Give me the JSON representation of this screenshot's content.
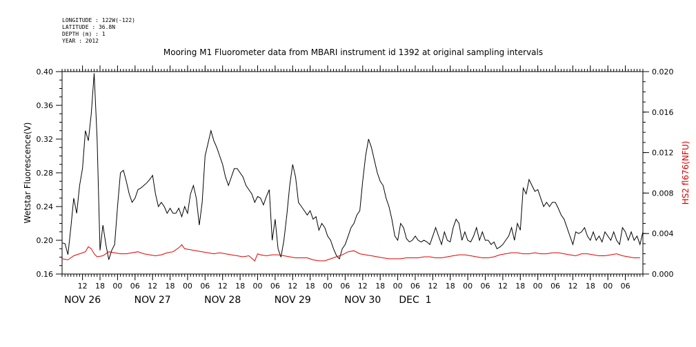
{
  "header_info": [
    "LONGITUDE : 122W(-122)",
    "LATITUDE : 36.8N",
    "DEPTH (m) : 1",
    "YEAR : 2012"
  ],
  "chart_data": {
    "type": "line",
    "title": "Mooring M1 Fluorometer data from MBARI instrument id 1392 at original sampling intervals",
    "xlabel": "",
    "x_unit": "hours since NOV 26 00:00 (2012)",
    "xlim": [
      5,
      204
    ],
    "x_ticks": [
      {
        "x": 12,
        "label": "12"
      },
      {
        "x": 18,
        "label": "18"
      },
      {
        "x": 24,
        "label": "00"
      },
      {
        "x": 30,
        "label": "06"
      },
      {
        "x": 36,
        "label": "12"
      },
      {
        "x": 42,
        "label": "18"
      },
      {
        "x": 48,
        "label": "00"
      },
      {
        "x": 54,
        "label": "06"
      },
      {
        "x": 60,
        "label": "12"
      },
      {
        "x": 66,
        "label": "18"
      },
      {
        "x": 72,
        "label": "00"
      },
      {
        "x": 78,
        "label": "06"
      },
      {
        "x": 84,
        "label": "12"
      },
      {
        "x": 90,
        "label": "18"
      },
      {
        "x": 96,
        "label": "00"
      },
      {
        "x": 102,
        "label": "06"
      },
      {
        "x": 108,
        "label": "12"
      },
      {
        "x": 114,
        "label": "18"
      },
      {
        "x": 120,
        "label": "00"
      },
      {
        "x": 126,
        "label": "06"
      },
      {
        "x": 132,
        "label": "12"
      },
      {
        "x": 138,
        "label": "18"
      },
      {
        "x": 144,
        "label": "00"
      },
      {
        "x": 150,
        "label": "06"
      },
      {
        "x": 156,
        "label": "12"
      },
      {
        "x": 162,
        "label": "18"
      },
      {
        "x": 168,
        "label": "00"
      },
      {
        "x": 174,
        "label": "06"
      },
      {
        "x": 180,
        "label": "12"
      },
      {
        "x": 186,
        "label": "18"
      },
      {
        "x": 192,
        "label": "00"
      },
      {
        "x": 198,
        "label": "06"
      }
    ],
    "date_labels": [
      {
        "x": 12,
        "label": "NOV 26"
      },
      {
        "x": 36,
        "label": "NOV 27"
      },
      {
        "x": 60,
        "label": "NOV 28"
      },
      {
        "x": 84,
        "label": "NOV 29"
      },
      {
        "x": 108,
        "label": "NOV 30"
      },
      {
        "x": 126,
        "label": "DEC  1"
      }
    ],
    "y_left": {
      "label": "Wetstar Fluorescence(V)",
      "lim": [
        0.16,
        0.4
      ],
      "ticks": [
        "0.16",
        "0.20",
        "0.24",
        "0.28",
        "0.32",
        "0.36",
        "0.40"
      ]
    },
    "y_right": {
      "label": "HS2 fl676(NFU)",
      "lim": [
        0.0,
        0.02
      ],
      "ticks": [
        "0.000",
        "0.004",
        "0.008",
        "0.012",
        "0.016",
        "0.020"
      ],
      "color": "#e00000"
    },
    "grid": false,
    "series": [
      {
        "axis": "left",
        "color": "#000000",
        "x": [
          5,
          6,
          7,
          8,
          9,
          10,
          11,
          12,
          13,
          14,
          15,
          16,
          17,
          18,
          19,
          20,
          21,
          22,
          23,
          24,
          25,
          26,
          27,
          28,
          29,
          30,
          31,
          32,
          33,
          34,
          35,
          36,
          37,
          38,
          39,
          40,
          41,
          42,
          43,
          44,
          45,
          46,
          47,
          48,
          49,
          50,
          51,
          52,
          53,
          54,
          55,
          56,
          57,
          58,
          59,
          60,
          61,
          62,
          63,
          64,
          65,
          66,
          67,
          68,
          69,
          70,
          71,
          72,
          73,
          74,
          75,
          76,
          77,
          78,
          79,
          80,
          81,
          82,
          83,
          84,
          85,
          86,
          87,
          88,
          89,
          90,
          91,
          92,
          93,
          94,
          95,
          96,
          97,
          98,
          99,
          100,
          101,
          102,
          103,
          104,
          105,
          106,
          107,
          108,
          109,
          110,
          111,
          112,
          113,
          114,
          115,
          116,
          117,
          118,
          119,
          120,
          121,
          122,
          123,
          124,
          125,
          126,
          127,
          128,
          129,
          130,
          131,
          132,
          133,
          134,
          135,
          136,
          137,
          138,
          139,
          140,
          141,
          142,
          143,
          144,
          145,
          146,
          147,
          148,
          149,
          150,
          151,
          152,
          153,
          154,
          155,
          156,
          157,
          158,
          159,
          160,
          161,
          162,
          163,
          164,
          165,
          166,
          167,
          168,
          169,
          170,
          171,
          172,
          173,
          174,
          175,
          176,
          177,
          178,
          179,
          180,
          181,
          182,
          183,
          184,
          185,
          186,
          187,
          188,
          189,
          190,
          191,
          192,
          193,
          194,
          195,
          196,
          197,
          198,
          199,
          200,
          201,
          202,
          203,
          204
        ],
        "values": [
          0.197,
          0.196,
          0.183,
          0.215,
          0.25,
          0.232,
          0.265,
          0.285,
          0.33,
          0.318,
          0.35,
          0.398,
          0.32,
          0.188,
          0.218,
          0.195,
          0.177,
          0.188,
          0.195,
          0.24,
          0.28,
          0.283,
          0.27,
          0.255,
          0.245,
          0.25,
          0.26,
          0.262,
          0.265,
          0.268,
          0.272,
          0.277,
          0.255,
          0.24,
          0.245,
          0.24,
          0.232,
          0.238,
          0.232,
          0.232,
          0.238,
          0.228,
          0.24,
          0.232,
          0.255,
          0.265,
          0.25,
          0.218,
          0.245,
          0.3,
          0.315,
          0.33,
          0.318,
          0.31,
          0.3,
          0.29,
          0.275,
          0.265,
          0.275,
          0.285,
          0.285,
          0.28,
          0.275,
          0.265,
          0.26,
          0.255,
          0.245,
          0.252,
          0.25,
          0.242,
          0.252,
          0.26,
          0.2,
          0.225,
          0.19,
          0.18,
          0.2,
          0.23,
          0.265,
          0.29,
          0.275,
          0.245,
          0.24,
          0.235,
          0.23,
          0.235,
          0.225,
          0.228,
          0.212,
          0.22,
          0.215,
          0.205,
          0.2,
          0.19,
          0.182,
          0.178,
          0.19,
          0.195,
          0.205,
          0.215,
          0.22,
          0.23,
          0.235,
          0.27,
          0.3,
          0.32,
          0.31,
          0.295,
          0.28,
          0.27,
          0.265,
          0.25,
          0.24,
          0.225,
          0.205,
          0.2,
          0.22,
          0.215,
          0.202,
          0.198,
          0.2,
          0.205,
          0.2,
          0.198,
          0.2,
          0.198,
          0.195,
          0.205,
          0.215,
          0.205,
          0.195,
          0.21,
          0.2,
          0.198,
          0.215,
          0.225,
          0.22,
          0.2,
          0.21,
          0.2,
          0.198,
          0.205,
          0.215,
          0.2,
          0.21,
          0.2,
          0.2,
          0.195,
          0.198,
          0.19,
          0.192,
          0.195,
          0.2,
          0.205,
          0.215,
          0.2,
          0.22,
          0.212,
          0.262,
          0.255,
          0.272,
          0.265,
          0.258,
          0.26,
          0.25,
          0.24,
          0.245,
          0.24,
          0.245,
          0.245,
          0.238,
          0.23,
          0.225,
          0.215,
          0.205,
          0.195,
          0.21,
          0.208,
          0.21,
          0.215,
          0.205,
          0.2,
          0.21,
          0.2,
          0.205,
          0.198,
          0.21,
          0.205,
          0.2,
          0.21,
          0.2,
          0.195,
          0.215,
          0.21,
          0.2,
          0.21,
          0.2,
          0.205,
          0.195,
          0.21
        ]
      },
      {
        "axis": "right",
        "color": "#e00000",
        "x": [
          5,
          7,
          9,
          11,
          13,
          14,
          15,
          16,
          17,
          19,
          21,
          23,
          25,
          27,
          29,
          31,
          33,
          35,
          37,
          39,
          41,
          43,
          45,
          46,
          47,
          49,
          51,
          53,
          55,
          57,
          59,
          61,
          63,
          65,
          67,
          69,
          71,
          72,
          73,
          75,
          77,
          79,
          81,
          83,
          85,
          87,
          89,
          91,
          93,
          95,
          97,
          99,
          101,
          103,
          105,
          107,
          109,
          111,
          113,
          115,
          117,
          119,
          121,
          123,
          125,
          127,
          129,
          131,
          133,
          135,
          137,
          139,
          141,
          143,
          145,
          147,
          149,
          151,
          153,
          155,
          157,
          159,
          161,
          163,
          165,
          167,
          169,
          171,
          173,
          175,
          177,
          179,
          181,
          183,
          185,
          187,
          189,
          191,
          193,
          195,
          197,
          199,
          201,
          203
        ],
        "values": [
          0.0015,
          0.0014,
          0.0018,
          0.002,
          0.0022,
          0.0027,
          0.0025,
          0.002,
          0.0017,
          0.0018,
          0.0022,
          0.0021,
          0.002,
          0.002,
          0.0021,
          0.0022,
          0.002,
          0.0019,
          0.0018,
          0.0019,
          0.0021,
          0.0022,
          0.0026,
          0.0029,
          0.0025,
          0.0024,
          0.0023,
          0.0022,
          0.0021,
          0.002,
          0.0021,
          0.002,
          0.0019,
          0.0018,
          0.0017,
          0.0018,
          0.0013,
          0.002,
          0.0019,
          0.0018,
          0.0019,
          0.0019,
          0.0018,
          0.0017,
          0.0016,
          0.0016,
          0.0016,
          0.0014,
          0.0013,
          0.0013,
          0.0015,
          0.0017,
          0.0019,
          0.0022,
          0.0023,
          0.002,
          0.0019,
          0.0018,
          0.0017,
          0.0016,
          0.0015,
          0.0015,
          0.0015,
          0.0016,
          0.0016,
          0.0016,
          0.0017,
          0.0017,
          0.0016,
          0.0016,
          0.0017,
          0.0018,
          0.0019,
          0.0019,
          0.0018,
          0.0017,
          0.0016,
          0.0016,
          0.0017,
          0.0019,
          0.002,
          0.0021,
          0.0021,
          0.002,
          0.002,
          0.0021,
          0.002,
          0.002,
          0.0021,
          0.0021,
          0.002,
          0.0019,
          0.0018,
          0.002,
          0.002,
          0.0019,
          0.0018,
          0.0018,
          0.0019,
          0.002,
          0.0018,
          0.0017,
          0.0016,
          0.0016
        ]
      }
    ]
  }
}
